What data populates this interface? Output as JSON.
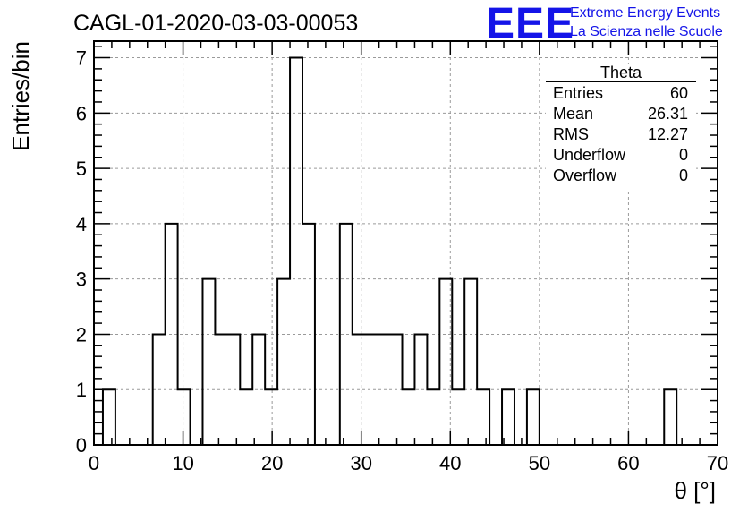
{
  "header": {
    "run_title": "CAGL-01-2020-03-03-00053",
    "brand_logo": "EEE",
    "brand_line1": "Extreme Energy Events",
    "brand_line2": "La Scienza nelle Scuole",
    "brand_color": "#1414e8"
  },
  "stats_box": {
    "title": "Theta",
    "rows": [
      {
        "label": "Entries",
        "value": "60"
      },
      {
        "label": "Mean",
        "value": "26.31"
      },
      {
        "label": "RMS",
        "value": "12.27"
      },
      {
        "label": "Underflow",
        "value": "0"
      },
      {
        "label": "Overflow",
        "value": "0"
      }
    ]
  },
  "chart_data": {
    "type": "bar",
    "style": "step-histogram",
    "title": "CAGL-01-2020-03-03-00053",
    "xlabel": "θ [°]",
    "ylabel": "Entries/bin",
    "xlim": [
      0,
      70
    ],
    "ylim": [
      0,
      7.3
    ],
    "bin_width": 1.4,
    "bin_start": 1.0,
    "x_ticks": [
      0,
      10,
      20,
      30,
      40,
      50,
      60,
      70
    ],
    "y_ticks": [
      0,
      1,
      2,
      3,
      4,
      5,
      6,
      7
    ],
    "grid": true,
    "line_color": "#000000",
    "values": [
      1,
      0,
      0,
      0,
      2,
      4,
      1,
      0,
      3,
      2,
      2,
      1,
      2,
      1,
      3,
      7,
      4,
      0,
      0,
      4,
      2,
      2,
      2,
      2,
      1,
      2,
      1,
      3,
      1,
      3,
      1,
      0,
      1,
      0,
      1,
      0,
      0,
      0,
      0,
      0,
      0,
      0,
      0,
      0,
      0,
      1
    ]
  }
}
